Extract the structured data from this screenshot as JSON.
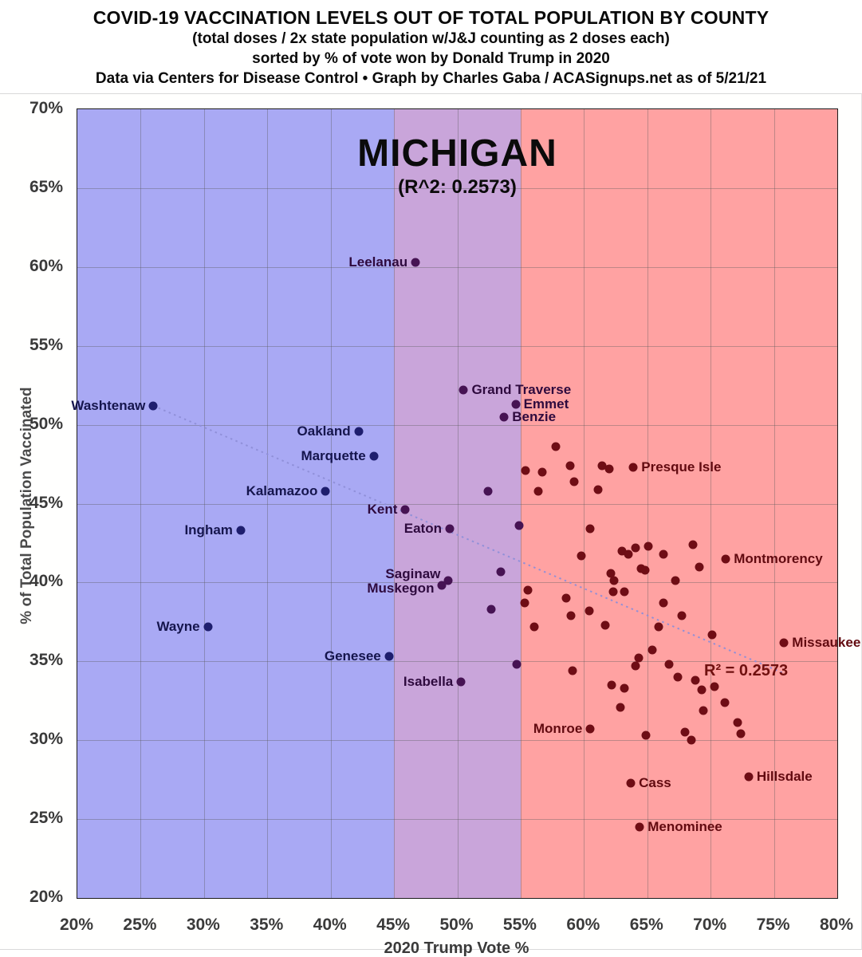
{
  "header": {
    "title": "COVID-19 VACCINATION LEVELS OUT OF TOTAL POPULATION BY COUNTY",
    "subtitle1": "(total doses / 2x state population w/J&J counting as 2 doses each)",
    "subtitle2": "sorted by % of vote won by Donald Trump in 2020",
    "source": "Data via Centers for Disease Control • Graph by Charles Gaba / ACASignups.net as of 5/21/21"
  },
  "chart": {
    "state_title": "MICHIGAN",
    "state_subtitle": "(R^2: 0.2573)",
    "r2_annotation": "R² = 0.2573",
    "xlabel": "2020 Trump Vote %",
    "ylabel": "% of Total Population Vaccinated"
  },
  "chart_data": {
    "type": "scatter",
    "title": "MICHIGAN",
    "xlabel": "2020 Trump Vote %",
    "ylabel": "% of Total Population Vaccinated",
    "xlim": [
      20,
      80
    ],
    "ylim": [
      20,
      70
    ],
    "x_tick_values": [
      20,
      25,
      30,
      35,
      40,
      45,
      50,
      55,
      60,
      65,
      70,
      75,
      80
    ],
    "x_tick_labels": [
      "20%",
      "25%",
      "30%",
      "35%",
      "40%",
      "45%",
      "50%",
      "55%",
      "60%",
      "65%",
      "70%",
      "75%",
      "80%"
    ],
    "y_tick_values": [
      20,
      25,
      30,
      35,
      40,
      45,
      50,
      55,
      60,
      65,
      70
    ],
    "y_tick_labels": [
      "20%",
      "25%",
      "30%",
      "35%",
      "40%",
      "45%",
      "50%",
      "55%",
      "60%",
      "65%",
      "70%"
    ],
    "grid": true,
    "r_squared": 0.2573,
    "regions": [
      {
        "name": "dem-lean",
        "from": 20,
        "to": 45,
        "color": "#a9a9f4"
      },
      {
        "name": "swing",
        "from": 45,
        "to": 55,
        "color": "#c9a5da"
      },
      {
        "name": "gop-lean",
        "from": 55,
        "to": 80,
        "color": "#ffa2a2"
      }
    ],
    "dot_colors": {
      "blue": "#1e1e6e",
      "purple": "#461353",
      "red": "#6f0d15"
    },
    "label_colors": {
      "blue": "#15154d",
      "purple": "#2e0a3e",
      "red": "#620a10"
    },
    "region_thresholds": [
      45,
      55
    ],
    "trendline": {
      "x1": 26.0,
      "y1": 51.2,
      "x2": 75.9,
      "y2": 34.2,
      "color": "#8f8fd8"
    },
    "points": [
      {
        "n": "Washtenaw",
        "x": 26.0,
        "y": 51.2,
        "s": "l"
      },
      {
        "n": "Oakland",
        "x": 42.2,
        "y": 49.6,
        "s": "l"
      },
      {
        "n": "Marquette",
        "x": 43.4,
        "y": 48.0,
        "s": "l"
      },
      {
        "n": "Kalamazoo",
        "x": 39.6,
        "y": 45.8,
        "s": "l"
      },
      {
        "n": "Ingham",
        "x": 32.9,
        "y": 43.3,
        "s": "l"
      },
      {
        "n": "Wayne",
        "x": 30.3,
        "y": 37.2,
        "s": "l"
      },
      {
        "n": "Genesee",
        "x": 44.6,
        "y": 35.3,
        "s": "l"
      },
      {
        "n": "Leelanau",
        "x": 46.7,
        "y": 60.3,
        "s": "l"
      },
      {
        "n": "Grand Traverse",
        "x": 50.5,
        "y": 52.2,
        "s": "r"
      },
      {
        "n": "Emmet",
        "x": 54.6,
        "y": 51.3,
        "s": "r"
      },
      {
        "n": "Benzie",
        "x": 53.7,
        "y": 50.5,
        "s": "r"
      },
      {
        "n": "Kent",
        "x": 45.9,
        "y": 44.6,
        "s": "l"
      },
      {
        "n": "Eaton",
        "x": 49.4,
        "y": 43.4,
        "s": "l"
      },
      {
        "n": "Saginaw",
        "x": 49.3,
        "y": 40.1,
        "s": "l",
        "dy": -8
      },
      {
        "n": "Muskegon",
        "x": 48.8,
        "y": 39.8,
        "s": "l",
        "dy": 4
      },
      {
        "n": "Isabella",
        "x": 50.3,
        "y": 33.7,
        "s": "l"
      },
      {
        "n": "Monroe",
        "x": 60.5,
        "y": 30.7,
        "s": "l"
      },
      {
        "n": "Cass",
        "x": 63.7,
        "y": 27.3,
        "s": "r"
      },
      {
        "n": "Menominee",
        "x": 64.4,
        "y": 24.5,
        "s": "r"
      },
      {
        "n": "Presque Isle",
        "x": 63.9,
        "y": 47.3,
        "s": "r"
      },
      {
        "n": "Montmorency",
        "x": 71.2,
        "y": 41.5,
        "s": "r"
      },
      {
        "n": "Missaukee",
        "x": 75.8,
        "y": 36.2,
        "s": "r"
      },
      {
        "n": "Hillsdale",
        "x": 73.0,
        "y": 27.7,
        "s": "r"
      },
      {
        "n": "",
        "x": 52.4,
        "y": 45.8
      },
      {
        "n": "",
        "x": 53.4,
        "y": 40.7
      },
      {
        "n": "",
        "x": 52.7,
        "y": 38.3
      },
      {
        "n": "",
        "x": 54.7,
        "y": 34.8
      },
      {
        "n": "",
        "x": 57.8,
        "y": 48.6
      },
      {
        "n": "",
        "x": 55.4,
        "y": 47.1
      },
      {
        "n": "",
        "x": 56.7,
        "y": 47.0
      },
      {
        "n": "",
        "x": 58.9,
        "y": 47.4
      },
      {
        "n": "",
        "x": 61.4,
        "y": 47.4
      },
      {
        "n": "",
        "x": 62.0,
        "y": 47.2
      },
      {
        "n": "",
        "x": 59.2,
        "y": 46.4
      },
      {
        "n": "",
        "x": 56.4,
        "y": 45.8
      },
      {
        "n": "",
        "x": 61.1,
        "y": 45.9
      },
      {
        "n": "",
        "x": 54.9,
        "y": 43.6
      },
      {
        "n": "",
        "x": 60.5,
        "y": 43.4
      },
      {
        "n": "",
        "x": 63.0,
        "y": 42.0
      },
      {
        "n": "",
        "x": 63.5,
        "y": 41.8
      },
      {
        "n": "",
        "x": 64.1,
        "y": 42.2
      },
      {
        "n": "",
        "x": 65.1,
        "y": 42.3
      },
      {
        "n": "",
        "x": 66.3,
        "y": 41.8
      },
      {
        "n": "",
        "x": 68.6,
        "y": 42.4
      },
      {
        "n": "",
        "x": 59.8,
        "y": 41.7
      },
      {
        "n": "",
        "x": 69.1,
        "y": 41.0
      },
      {
        "n": "",
        "x": 64.5,
        "y": 40.9
      },
      {
        "n": "",
        "x": 64.8,
        "y": 40.8
      },
      {
        "n": "",
        "x": 62.1,
        "y": 40.6
      },
      {
        "n": "",
        "x": 62.4,
        "y": 40.1
      },
      {
        "n": "",
        "x": 67.2,
        "y": 40.1
      },
      {
        "n": "",
        "x": 55.6,
        "y": 39.5
      },
      {
        "n": "",
        "x": 62.3,
        "y": 39.4
      },
      {
        "n": "",
        "x": 63.2,
        "y": 39.4
      },
      {
        "n": "",
        "x": 58.6,
        "y": 39.0
      },
      {
        "n": "",
        "x": 55.3,
        "y": 38.7
      },
      {
        "n": "",
        "x": 66.3,
        "y": 38.7
      },
      {
        "n": "",
        "x": 60.4,
        "y": 38.2
      },
      {
        "n": "",
        "x": 59.0,
        "y": 37.9
      },
      {
        "n": "",
        "x": 67.7,
        "y": 37.9
      },
      {
        "n": "",
        "x": 56.1,
        "y": 37.2
      },
      {
        "n": "",
        "x": 61.7,
        "y": 37.3
      },
      {
        "n": "",
        "x": 65.9,
        "y": 37.2
      },
      {
        "n": "",
        "x": 70.1,
        "y": 36.7
      },
      {
        "n": "",
        "x": 65.4,
        "y": 35.7
      },
      {
        "n": "",
        "x": 64.3,
        "y": 35.2
      },
      {
        "n": "",
        "x": 64.1,
        "y": 34.7
      },
      {
        "n": "",
        "x": 66.7,
        "y": 34.8
      },
      {
        "n": "",
        "x": 59.1,
        "y": 34.4
      },
      {
        "n": "",
        "x": 67.4,
        "y": 34.0
      },
      {
        "n": "",
        "x": 68.8,
        "y": 33.8
      },
      {
        "n": "",
        "x": 70.3,
        "y": 33.4
      },
      {
        "n": "",
        "x": 69.3,
        "y": 33.2
      },
      {
        "n": "",
        "x": 62.2,
        "y": 33.5
      },
      {
        "n": "",
        "x": 63.2,
        "y": 33.3
      },
      {
        "n": "",
        "x": 71.1,
        "y": 32.4
      },
      {
        "n": "",
        "x": 62.9,
        "y": 32.1
      },
      {
        "n": "",
        "x": 69.4,
        "y": 31.9
      },
      {
        "n": "",
        "x": 72.1,
        "y": 31.1
      },
      {
        "n": "",
        "x": 72.4,
        "y": 30.4
      },
      {
        "n": "",
        "x": 64.9,
        "y": 30.3
      },
      {
        "n": "",
        "x": 68.0,
        "y": 30.5
      },
      {
        "n": "",
        "x": 68.5,
        "y": 30.0
      }
    ]
  }
}
